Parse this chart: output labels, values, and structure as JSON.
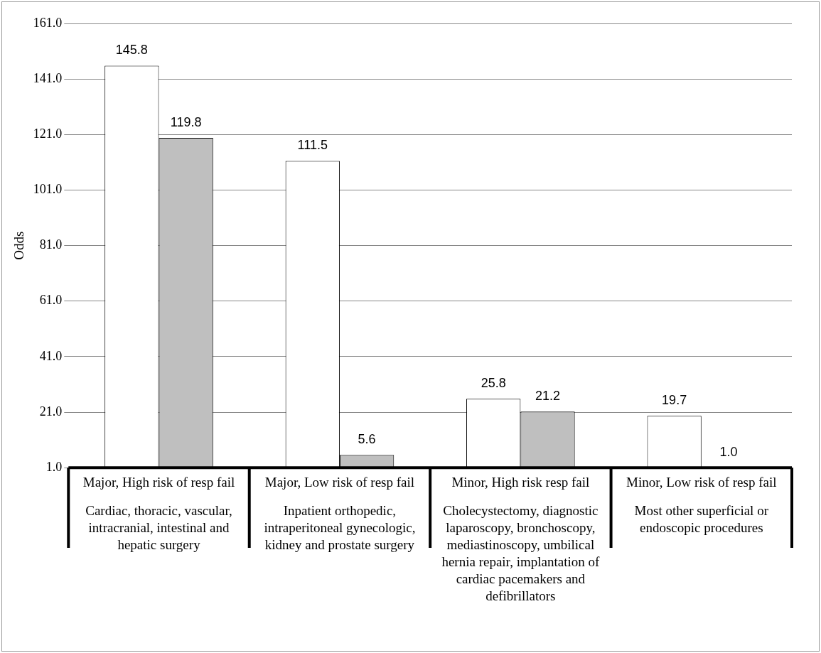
{
  "chart_data": {
    "type": "bar",
    "ylabel": "Odds",
    "categories": [
      "Major, High risk of resp fail",
      "Major, Low risk of resp fail",
      "Minor, High risk resp fail",
      "Minor, Low risk of resp fail"
    ],
    "annotations": [
      "Cardiac, thoracic, vascular, intracranial, intestinal and hepatic surgery",
      "Inpatient orthopedic, intraperitoneal gynecologic, kidney and prostate surgery",
      "Cholecystectomy, diagnostic laparoscopy, bronchoscopy, mediastinoscopy, umbilical hernia repair, implantation of cardiac pacemakers and defibrillators",
      "Most other superficial or endoscopic procedures"
    ],
    "series": [
      {
        "color": "#ffffff",
        "values": [
          145.8,
          111.5,
          25.8,
          19.7
        ],
        "value_labels": [
          "145.8",
          "111.5",
          "25.8",
          "19.7"
        ]
      },
      {
        "color": "#bfbfbf",
        "values": [
          119.8,
          5.6,
          21.2,
          1.0
        ],
        "value_labels": [
          "119.8",
          "5.6",
          "21.2",
          "1.0"
        ]
      }
    ],
    "ylim": [
      1,
      161
    ],
    "yticks": [
      {
        "value": 1,
        "label": "1.0"
      },
      {
        "value": 21,
        "label": "21.0"
      },
      {
        "value": 41,
        "label": "41.0"
      },
      {
        "value": 61,
        "label": "61.0"
      },
      {
        "value": 81,
        "label": "81.0"
      },
      {
        "value": 101,
        "label": "101.0"
      },
      {
        "value": 121,
        "label": "121.0"
      },
      {
        "value": 141,
        "label": "141.0"
      },
      {
        "value": 161,
        "label": "161.0"
      }
    ],
    "grid": "y",
    "legend": false
  }
}
